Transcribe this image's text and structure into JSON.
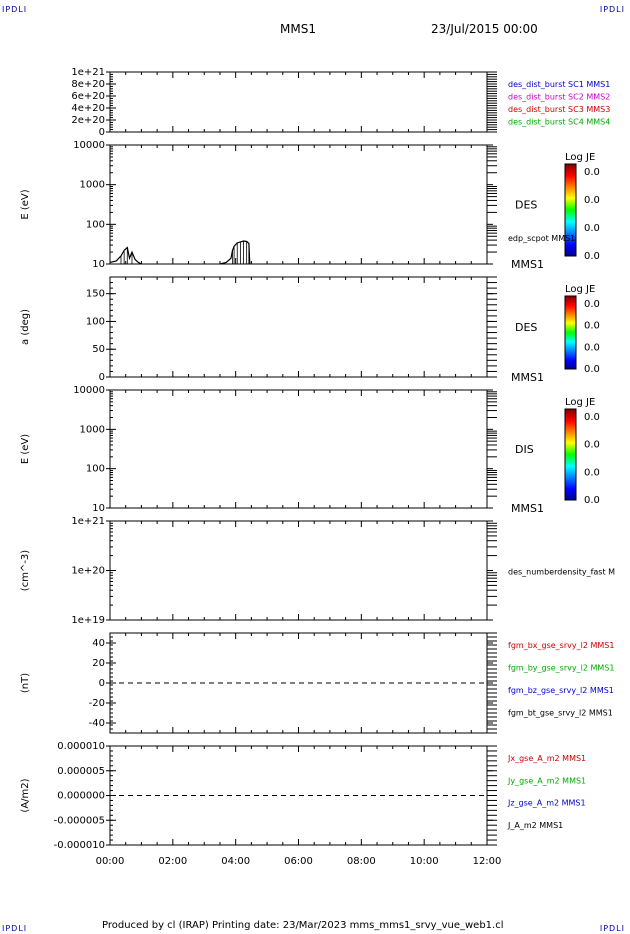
{
  "corners": {
    "tl": "IPDLI",
    "tr": "IPDLI",
    "bl": "IPDLI",
    "br": "IPDLI"
  },
  "header": {
    "spacecraft": "MMS1",
    "date": "23/Jul/2015 00:00"
  },
  "footer": {
    "text": "Produced by cl (IRAP)   Printing date: 23/Mar/2023   mms_mms1_srvy_vue_web1.cl"
  },
  "colors": {
    "series_blue": "#0000cc",
    "series_magenta": "#cc00cc",
    "series_red": "#cc0000",
    "series_green": "#00aa00",
    "series_black": "#000000"
  },
  "chart_data": [
    {
      "type": "line",
      "ylim": [
        0,
        1e+21
      ],
      "yticks": [
        "1e+21",
        "8e+20",
        "6e+20",
        "4e+20",
        "2e+20",
        "0"
      ],
      "legend": [
        {
          "text": "des_dist_burst SC1 MMS1",
          "color": "#0000cc"
        },
        {
          "text": "des_dist_burst SC2 MMS2",
          "color": "#cc00cc"
        },
        {
          "text": "des_dist_burst SC3 MMS3",
          "color": "#cc0000"
        },
        {
          "text": "des_dist_burst SC4 MMS4",
          "color": "#00aa00"
        }
      ],
      "zero_line": true
    },
    {
      "type": "heatmap",
      "ylabel": "E (eV)",
      "log_y": true,
      "ylim": [
        10,
        10000
      ],
      "yticks": [
        "10000",
        "1000",
        "100",
        "10"
      ],
      "side_label": "DES",
      "bottom_label": "MMS1",
      "overlay_label": "edp_scpot MMS1",
      "colorbar": {
        "title": "Log JE",
        "ticks": [
          "0.0",
          "0.0",
          "0.0",
          "0.0"
        ]
      },
      "line_points": [
        [
          0.0,
          11
        ],
        [
          0.2,
          12
        ],
        [
          0.35,
          16
        ],
        [
          0.45,
          22
        ],
        [
          0.55,
          26
        ],
        [
          0.62,
          14
        ],
        [
          0.7,
          20
        ],
        [
          0.8,
          13
        ],
        [
          0.9,
          11
        ],
        [
          1.0,
          10
        ],
        [
          3.5,
          10
        ],
        [
          3.7,
          11
        ],
        [
          3.85,
          14
        ],
        [
          3.9,
          22
        ],
        [
          3.95,
          28
        ],
        [
          4.05,
          34
        ],
        [
          4.15,
          36
        ],
        [
          4.25,
          38
        ],
        [
          4.35,
          37
        ],
        [
          4.42,
          33
        ],
        [
          4.45,
          10
        ]
      ]
    },
    {
      "type": "heatmap",
      "ylabel": "a (deg)",
      "ylim": [
        0,
        180
      ],
      "yticks": [
        "150",
        "100",
        "50",
        "0"
      ],
      "side_label": "DES",
      "bottom_label": "MMS1",
      "colorbar": {
        "title": "Log JE",
        "ticks": [
          "0.0",
          "0.0",
          "0.0",
          "0.0"
        ]
      }
    },
    {
      "type": "heatmap",
      "ylabel": "E (eV)",
      "log_y": true,
      "ylim": [
        10,
        10000
      ],
      "yticks": [
        "10000",
        "1000",
        "100",
        "10"
      ],
      "side_label": "DIS",
      "bottom_label": "MMS1",
      "colorbar": {
        "title": "Log JE",
        "ticks": [
          "0.0",
          "0.0",
          "0.0",
          "0.0"
        ]
      }
    },
    {
      "type": "line",
      "ylabel": "(cm^-3)",
      "log_y": true,
      "ylim": [
        1e+19,
        1e+21
      ],
      "yticks": [
        "1e+21",
        "1e+20",
        "1e+19"
      ],
      "legend": [
        {
          "text": "des_numberdensity_fast M",
          "color": "#000000"
        }
      ]
    },
    {
      "type": "line",
      "ylabel": "(nT)",
      "ylim": [
        -50,
        50
      ],
      "yticks": [
        "40",
        "20",
        "0",
        "-20",
        "-40"
      ],
      "zero_line": true,
      "legend": [
        {
          "text": "fgm_bx_gse_srvy_l2 MMS1",
          "color": "#cc0000"
        },
        {
          "text": "fgm_by_gse_srvy_l2 MMS1",
          "color": "#00aa00"
        },
        {
          "text": "fgm_bz_gse_srvy_l2 MMS1",
          "color": "#0000cc"
        },
        {
          "text": "fgm_bt_gse_srvy_l2 MMS1",
          "color": "#000000"
        }
      ]
    },
    {
      "type": "line",
      "ylabel": "(A/m2)",
      "ylim": [
        -1e-05,
        1e-05
      ],
      "yticks": [
        "0.000010",
        "0.000005",
        "0.000000",
        "-0.000005",
        "-0.000010"
      ],
      "zero_line": true,
      "legend": [
        {
          "text": "Jx_gse_A_m2 MMS1",
          "color": "#cc0000"
        },
        {
          "text": "Jy_gse_A_m2 MMS1",
          "color": "#00aa00"
        },
        {
          "text": "Jz_gse_A_m2 MMS1",
          "color": "#0000cc"
        },
        {
          "text": "J_A_m2 MMS1",
          "color": "#000000"
        }
      ]
    }
  ],
  "xaxis": {
    "ticks": [
      "00:00",
      "02:00",
      "04:00",
      "06:00",
      "08:00",
      "10:00",
      "12:00"
    ],
    "xlim": [
      0,
      12
    ]
  }
}
